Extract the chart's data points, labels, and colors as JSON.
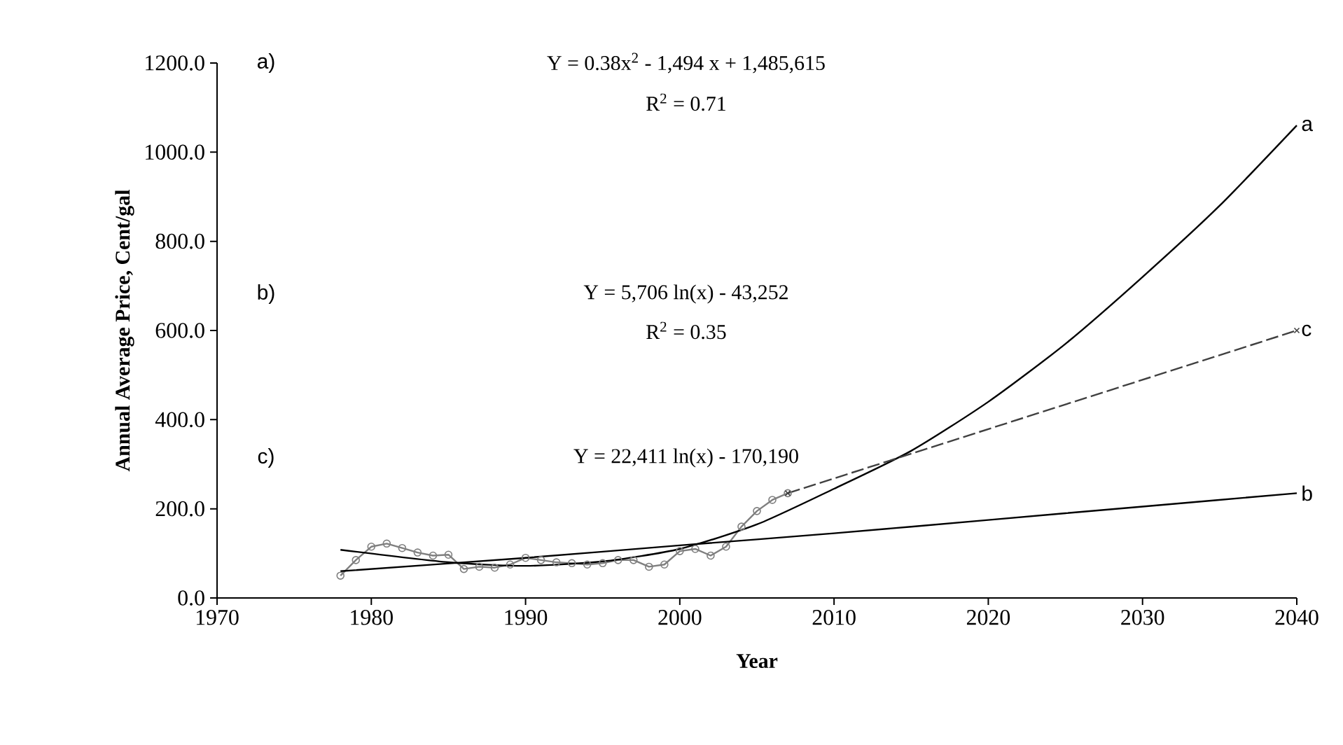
{
  "chart_data": {
    "type": "line",
    "xlabel": "Year",
    "ylabel": "Annual Average Price, Cent/gal",
    "xlim": [
      1970,
      2040
    ],
    "ylim": [
      0,
      1200
    ],
    "xticks": [
      1970,
      1980,
      1990,
      2000,
      2010,
      2020,
      2030,
      2040
    ],
    "yticks": [
      {
        "value": 0,
        "label": "0.0"
      },
      {
        "value": 200,
        "label": "200.0"
      },
      {
        "value": 400,
        "label": "400.0"
      },
      {
        "value": 600,
        "label": "600.0"
      },
      {
        "value": 800,
        "label": "800.0"
      },
      {
        "value": 1000,
        "label": "1000.0"
      },
      {
        "value": 1200,
        "label": "1200.0"
      }
    ],
    "grid": false,
    "series": [
      {
        "color": "#7f7f7f",
        "marker": "circle",
        "line_style": "solid",
        "x": [
          1978,
          1979,
          1980,
          1981,
          1982,
          1983,
          1984,
          1985,
          1986,
          1987,
          1988,
          1989,
          1990,
          1991,
          1992,
          1993,
          1994,
          1995,
          1996,
          1997,
          1998,
          1999,
          2000,
          2001,
          2002,
          2003,
          2004,
          2005,
          2006,
          2007
        ],
        "values": [
          50,
          85,
          115,
          122,
          112,
          102,
          95,
          97,
          65,
          70,
          68,
          75,
          90,
          85,
          80,
          78,
          75,
          78,
          85,
          85,
          70,
          75,
          105,
          110,
          95,
          115,
          160,
          195,
          220,
          235
        ]
      },
      {
        "name": "a",
        "color": "#000000",
        "marker": "none",
        "line_style": "solid",
        "x": [
          1978,
          1985,
          1990,
          1995,
          2000,
          2005,
          2010,
          2015,
          2020,
          2025,
          2030,
          2035,
          2040
        ],
        "values": [
          108,
          80,
          72,
          82,
          110,
          165,
          245,
          330,
          440,
          570,
          720,
          880,
          1060
        ]
      },
      {
        "name": "b",
        "color": "#000000",
        "marker": "none",
        "line_style": "solid",
        "x": [
          1978,
          1990,
          2000,
          2010,
          2020,
          2030,
          2040
        ],
        "values": [
          60,
          90,
          118,
          145,
          175,
          205,
          235
        ]
      },
      {
        "name": "c",
        "color": "#404040",
        "marker": "cross",
        "line_style": "dashed",
        "x": [
          2007,
          2040
        ],
        "values": [
          235,
          600
        ]
      }
    ],
    "annotations": [
      "a)",
      "Y = 0.38x$^{2}$ - 1,494 x + 1,485,615",
      "R$^{2}$ = 0.71",
      "b)",
      "Y = 5,706 ln(x) - 43,252",
      "R$^{2}$ = 0.35",
      "c)",
      "Y = 22,411 ln(x) - 170,190"
    ]
  }
}
